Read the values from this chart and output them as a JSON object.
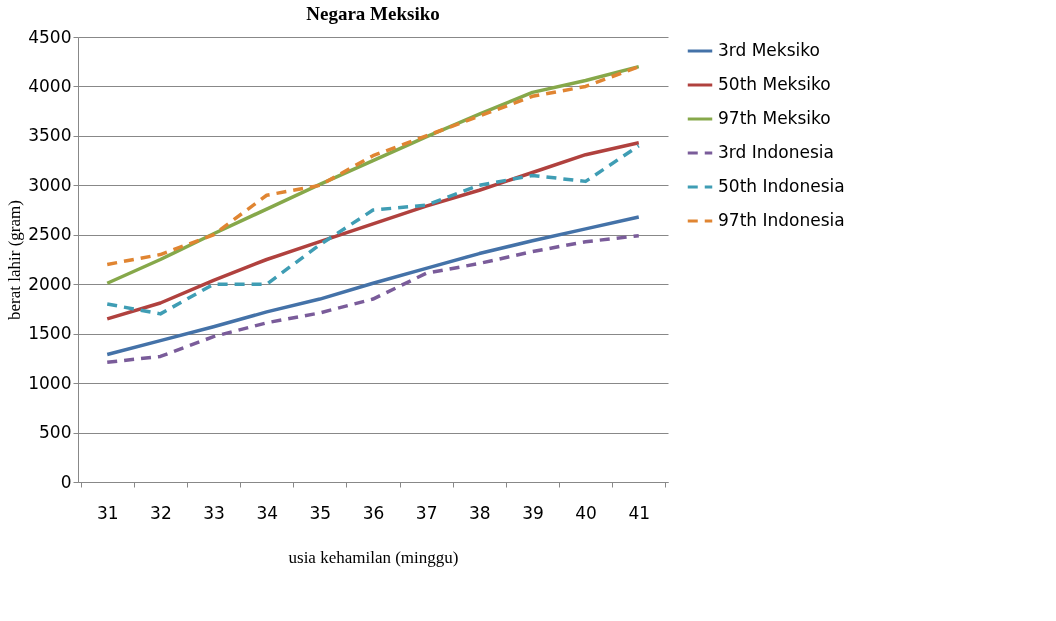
{
  "chart_data": {
    "type": "line",
    "title": "Negara Meksiko",
    "xlabel": "usia kehamilan (minggu)",
    "ylabel": "berat lahir (gram)",
    "categories": [
      "31",
      "32",
      "33",
      "34",
      "35",
      "36",
      "37",
      "38",
      "39",
      "40",
      "41"
    ],
    "ylim": [
      0,
      4500
    ],
    "yticks": [
      0,
      500,
      1000,
      1500,
      2000,
      2500,
      3000,
      3500,
      4000,
      4500
    ],
    "grid": "y",
    "legend": "right",
    "marker": "none",
    "series": [
      {
        "name": "3rd Meksiko",
        "color": "#4472a8",
        "line_style": "solid",
        "values": [
          1290,
          1430,
          1570,
          1720,
          1850,
          2010,
          2160,
          2310,
          2440,
          2560,
          2680
        ]
      },
      {
        "name": "50th Meksiko",
        "color": "#b0413e",
        "line_style": "solid",
        "values": [
          1650,
          1810,
          2040,
          2250,
          2430,
          2610,
          2790,
          2950,
          3130,
          3310,
          3430
        ]
      },
      {
        "name": "97th Meksiko",
        "color": "#86a84a",
        "line_style": "solid",
        "values": [
          2010,
          2250,
          2510,
          2760,
          3010,
          3250,
          3490,
          3720,
          3940,
          4060,
          4200
        ]
      },
      {
        "name": "3rd Indonesia",
        "color": "#7a5c9a",
        "line_style": "dashed",
        "values": [
          1210,
          1270,
          1470,
          1610,
          1710,
          1850,
          2110,
          2210,
          2330,
          2430,
          2490
        ]
      },
      {
        "name": "50th Indonesia",
        "color": "#3f9db4",
        "line_style": "dashed",
        "values": [
          1800,
          1700,
          2000,
          2000,
          2400,
          2750,
          2800,
          3000,
          3100,
          3040,
          3400
        ]
      },
      {
        "name": "97th Indonesia",
        "color": "#e08532",
        "line_style": "dashed",
        "values": [
          2200,
          2300,
          2500,
          2900,
          3000,
          3300,
          3500,
          3700,
          3900,
          4000,
          4200
        ]
      }
    ]
  }
}
